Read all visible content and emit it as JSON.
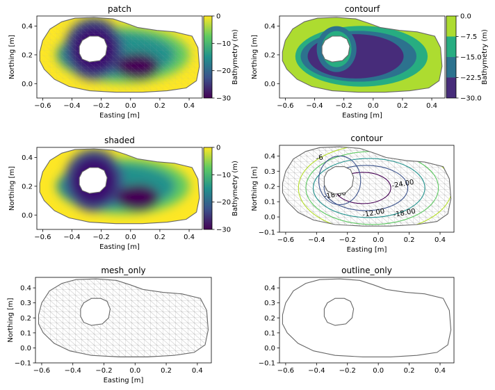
{
  "chart_data": [
    {
      "id": "patch",
      "type": "heatmap",
      "title": "patch",
      "xlabel": "Easting [m]",
      "ylabel": "Northing [m]",
      "xlim": [
        -0.64,
        0.49
      ],
      "ylim": [
        -0.1,
        0.47
      ],
      "xticks": [
        "−0.6",
        "−0.4",
        "−0.2",
        "0.0",
        "0.2",
        "0.4"
      ],
      "xtick_values": [
        -0.6,
        -0.4,
        -0.2,
        0.0,
        0.2,
        0.4
      ],
      "yticks": [
        "0.0",
        "0.2",
        "0.4"
      ],
      "ytick_values": [
        0.0,
        0.2,
        0.4
      ],
      "colorbar": {
        "label": "Bathymetry (m)",
        "range": [
          -30,
          0
        ],
        "ticks": [
          "0",
          "−10",
          "−20",
          "−30"
        ],
        "tick_values": [
          0,
          -10,
          -20,
          -30
        ]
      }
    },
    {
      "id": "contourf",
      "type": "heatmap",
      "title": "contourf",
      "xlabel": "Easting [m]",
      "ylabel": "Northing [m]",
      "xlim": [
        -0.64,
        0.49
      ],
      "ylim": [
        -0.1,
        0.47
      ],
      "xticks": [
        "−0.6",
        "−0.4",
        "−0.2",
        "0.0",
        "0.2",
        "0.4"
      ],
      "xtick_values": [
        -0.6,
        -0.4,
        -0.2,
        0.0,
        0.2,
        0.4
      ],
      "yticks": [
        "0.0",
        "0.2",
        "0.4"
      ],
      "ytick_values": [
        0.0,
        0.2,
        0.4
      ],
      "colorbar": {
        "label": "Bathymetry (m)",
        "range": [
          -30,
          0
        ],
        "ticks": [
          "0.0",
          "−7.5",
          "−15.0",
          "−22.5",
          "−30.0"
        ],
        "tick_values": [
          0,
          -7.5,
          -15,
          -22.5,
          -30
        ]
      }
    },
    {
      "id": "shaded",
      "type": "heatmap",
      "title": "shaded",
      "xlabel": "Easting [m]",
      "ylabel": "Northing [m]",
      "xlim": [
        -0.64,
        0.49
      ],
      "ylim": [
        -0.1,
        0.47
      ],
      "xticks": [
        "−0.6",
        "−0.4",
        "−0.2",
        "0.0",
        "0.2",
        "0.4"
      ],
      "xtick_values": [
        -0.6,
        -0.4,
        -0.2,
        0.0,
        0.2,
        0.4
      ],
      "yticks": [
        "0.0",
        "0.2",
        "0.4"
      ],
      "ytick_values": [
        0.0,
        0.2,
        0.4
      ],
      "colorbar": {
        "label": "Bathymetry (m)",
        "range": [
          -30,
          0
        ],
        "ticks": [
          "0",
          "−10",
          "−20",
          "−30"
        ],
        "tick_values": [
          0,
          -10,
          -20,
          -30
        ]
      }
    },
    {
      "id": "contour",
      "type": "line",
      "title": "contour",
      "xlabel": "Easting [m]",
      "ylabel": "Northing [m]",
      "xlim": [
        -0.64,
        0.49
      ],
      "ylim": [
        -0.1,
        0.47
      ],
      "xticks": [
        "−0.6",
        "−0.4",
        "−0.2",
        "0.0",
        "0.2",
        "0.4"
      ],
      "xtick_values": [
        -0.6,
        -0.4,
        -0.2,
        0.0,
        0.2,
        0.4
      ],
      "yticks": [
        "−0.1",
        "0.0",
        "0.1",
        "0.2",
        "0.3",
        "0.4"
      ],
      "ytick_values": [
        -0.1,
        0.0,
        0.1,
        0.2,
        0.3,
        0.4
      ],
      "contour_labels": [
        "-18.00",
        "-24.00",
        "-12.00",
        "-18.00",
        "-6"
      ]
    },
    {
      "id": "mesh_only",
      "type": "other",
      "title": "mesh_only",
      "xlabel": "Easting [m]",
      "ylabel": "Northing [m]",
      "xlim": [
        -0.64,
        0.49
      ],
      "ylim": [
        -0.1,
        0.47
      ],
      "xticks": [
        "−0.6",
        "−0.4",
        "−0.2",
        "0.0",
        "0.2",
        "0.4"
      ],
      "xtick_values": [
        -0.6,
        -0.4,
        -0.2,
        0.0,
        0.2,
        0.4
      ],
      "yticks": [
        "−0.1",
        "0.0",
        "0.1",
        "0.2",
        "0.3",
        "0.4"
      ],
      "ytick_values": [
        -0.1,
        0.0,
        0.1,
        0.2,
        0.3,
        0.4
      ]
    },
    {
      "id": "outline_only",
      "type": "other",
      "title": "outline_only",
      "xlabel": "",
      "ylabel": "",
      "xlim": [
        -0.64,
        0.49
      ],
      "ylim": [
        -0.1,
        0.47
      ],
      "xticks": [
        "−0.6",
        "−0.4",
        "−0.2",
        "0.0",
        "0.2",
        "0.4"
      ],
      "xtick_values": [
        -0.6,
        -0.4,
        -0.2,
        0.0,
        0.2,
        0.4
      ],
      "yticks": [
        "−0.1",
        "0.0",
        "0.1",
        "0.2",
        "0.3",
        "0.4"
      ],
      "ytick_values": [
        -0.1,
        0.0,
        0.1,
        0.2,
        0.3,
        0.4
      ]
    }
  ],
  "colormap": [
    "#440154",
    "#3b528b",
    "#21918c",
    "#5ec962",
    "#fde725"
  ],
  "contourf_levels": [
    "#472c7a",
    "#2c728e",
    "#27ad81",
    "#addc30"
  ],
  "outline_color": "#666666",
  "mesh_color": "#9a9a9a"
}
